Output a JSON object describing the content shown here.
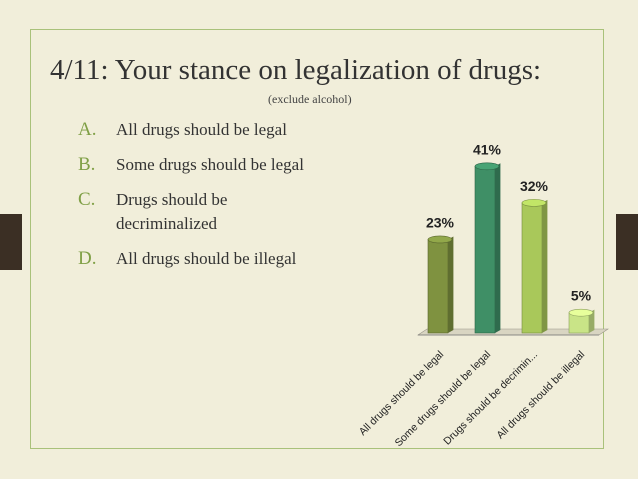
{
  "slide": {
    "title": "4/11:  Your stance on legalization of drugs:",
    "subtitle": "(exclude alcohol)",
    "options": [
      {
        "letter": "A.",
        "text": "All drugs should be legal"
      },
      {
        "letter": "B.",
        "text": "Some drugs should be legal"
      },
      {
        "letter": "C.",
        "text": "Drugs should be decriminalized"
      },
      {
        "letter": "D.",
        "text": "All drugs should be illegal"
      }
    ]
  },
  "chart_data": {
    "type": "bar",
    "categories": [
      "All drugs should be legal",
      "Some drugs should be legal",
      "Drugs should be decrimin...",
      "All drugs should be illegal"
    ],
    "values": [
      23,
      41,
      32,
      5
    ],
    "data_labels": [
      "23%",
      "41%",
      "32%",
      "5%"
    ],
    "colors": [
      "#7f9240",
      "#3f8f66",
      "#a9c85a",
      "#c9e487"
    ],
    "ylim": [
      0,
      45
    ],
    "grid": false
  }
}
